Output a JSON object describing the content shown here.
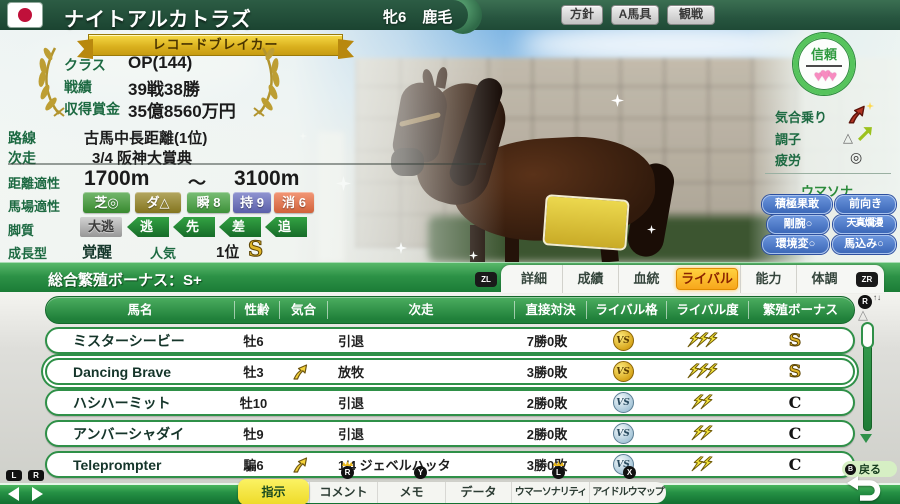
{
  "colors": {
    "accent_green": "#27553f",
    "bar_green": "#2d9247",
    "tab_selected_orange": "#f7a61c",
    "bottom_tab_selected_yellow": "#f4e84a",
    "trust_ring_green": "#56c45c",
    "heart_pink": "#f78cc0",
    "umasona_badge_blue": "#3c68b8",
    "gold_grade": "#e0b62a",
    "row_border_green": "#2f9048"
  },
  "topbar": {
    "flag_icon": "japan-flag-icon",
    "horse_name": "ナイトアルカトラズ",
    "sex_age": "牝6",
    "coat": "鹿毛",
    "buttons": [
      "方針",
      "A馬具",
      "観戦"
    ]
  },
  "profile": {
    "ribbon_title": "レコードブレイカー",
    "stats": [
      {
        "label": "クラス",
        "value": "OP(144)"
      },
      {
        "label": "戦績",
        "value": "39戦38勝"
      },
      {
        "label": "収得賞金",
        "value": "35億8560万円"
      }
    ],
    "route_label": "路線",
    "route_value": "古馬中長距離(1位)",
    "next_label": "次走",
    "next_value": "3/4 阪神大賞典",
    "distance_label": "距離適性",
    "distance_min": "1700m",
    "distance_tilde": "～",
    "distance_max": "3100m",
    "surface_label": "馬場適性",
    "surface_badges": [
      {
        "text": "芝◎",
        "color": "#3f9c35"
      },
      {
        "text": "ダ△",
        "color": "#968523"
      },
      {
        "text": "瞬 8",
        "color": "#46a541"
      },
      {
        "text": "持 9",
        "color": "#666cc0"
      },
      {
        "text": "消 6",
        "color": "#ee6f42"
      }
    ],
    "style_label": "脚質",
    "style_disabled": "大逃",
    "style_flags": [
      "逃",
      "先",
      "差",
      "追"
    ],
    "growth_label": "成長型",
    "growth_value": "覚醒",
    "pop_label": "人気",
    "pop_value": "1位",
    "pop_grade": "S"
  },
  "status": {
    "trust_label": "信頼",
    "trust_hearts": 3,
    "heart_icon": "heart-icon",
    "rows": [
      {
        "label": "気合乗り",
        "icon": "spirit-dash-icon"
      },
      {
        "label": "調子",
        "value": "△",
        "icon": "up-arrow-icon"
      },
      {
        "label": "疲労",
        "value": "◎",
        "icon": "double-circle-mark"
      }
    ],
    "umasona_title": "ウマソナ",
    "umasona_badges": [
      "積極果敢",
      "前向き",
      "剛腕○",
      "天真爛漫",
      "環境変○",
      "馬込み○"
    ]
  },
  "midbar": {
    "bonus_text": "総合繁殖ボーナス：S+",
    "zl_label": "ZL",
    "zr_label": "ZR",
    "tabs": [
      {
        "label": "詳細"
      },
      {
        "label": "成績"
      },
      {
        "label": "血統"
      },
      {
        "label": "ライバル",
        "selected": true
      },
      {
        "label": "能力"
      },
      {
        "label": "体調"
      }
    ]
  },
  "rival_table": {
    "columns": [
      "馬名",
      "性齢",
      "気合",
      "次走",
      "直接対決",
      "ライバル格",
      "ライバル度",
      "繁殖ボーナス"
    ],
    "rows": [
      {
        "name": "ミスターシービー",
        "sex_age": "牡6",
        "spirit": false,
        "next": "引退",
        "record": "7勝0敗",
        "rival_rank": "gold",
        "rival_intensity": 3,
        "bonus_grade": "S"
      },
      {
        "name": "Dancing Brave",
        "sex_age": "牡3",
        "spirit": true,
        "next": "放牧",
        "record": "3勝0敗",
        "rival_rank": "gold",
        "rival_intensity": 3,
        "bonus_grade": "S",
        "highlighted": true
      },
      {
        "name": "ハシハーミット",
        "sex_age": "牡10",
        "spirit": false,
        "next": "引退",
        "record": "2勝0敗",
        "rival_rank": "silver",
        "rival_intensity": 2,
        "bonus_grade": "C"
      },
      {
        "name": "アンバーシャダイ",
        "sex_age": "牡9",
        "spirit": false,
        "next": "引退",
        "record": "2勝0敗",
        "rival_rank": "silver",
        "rival_intensity": 2,
        "bonus_grade": "C"
      },
      {
        "name": "Teleprompter",
        "sex_age": "騙6",
        "spirit": true,
        "next": "1/4 ジェベルハッタ",
        "record": "3勝0敗",
        "rival_rank": "silver",
        "rival_intensity": 2,
        "bonus_grade": "C"
      }
    ],
    "scroll": {
      "stick_label": "R",
      "up_glyph": "△",
      "stick_arrows": "↑↓"
    }
  },
  "bottombar": {
    "l_label": "L",
    "r_label": "R",
    "tabs": [
      {
        "label": "指示",
        "selected": true
      },
      {
        "label": "コメント",
        "button": "R",
        "crown": true
      },
      {
        "label": "メモ",
        "button": "Y"
      },
      {
        "label": "データ"
      },
      {
        "label": "ウマーソナリティ",
        "button": "L",
        "crown": true
      },
      {
        "label": "アイドルウマップ",
        "button": "X"
      }
    ],
    "back_button": "B",
    "back_label": "戻る"
  }
}
